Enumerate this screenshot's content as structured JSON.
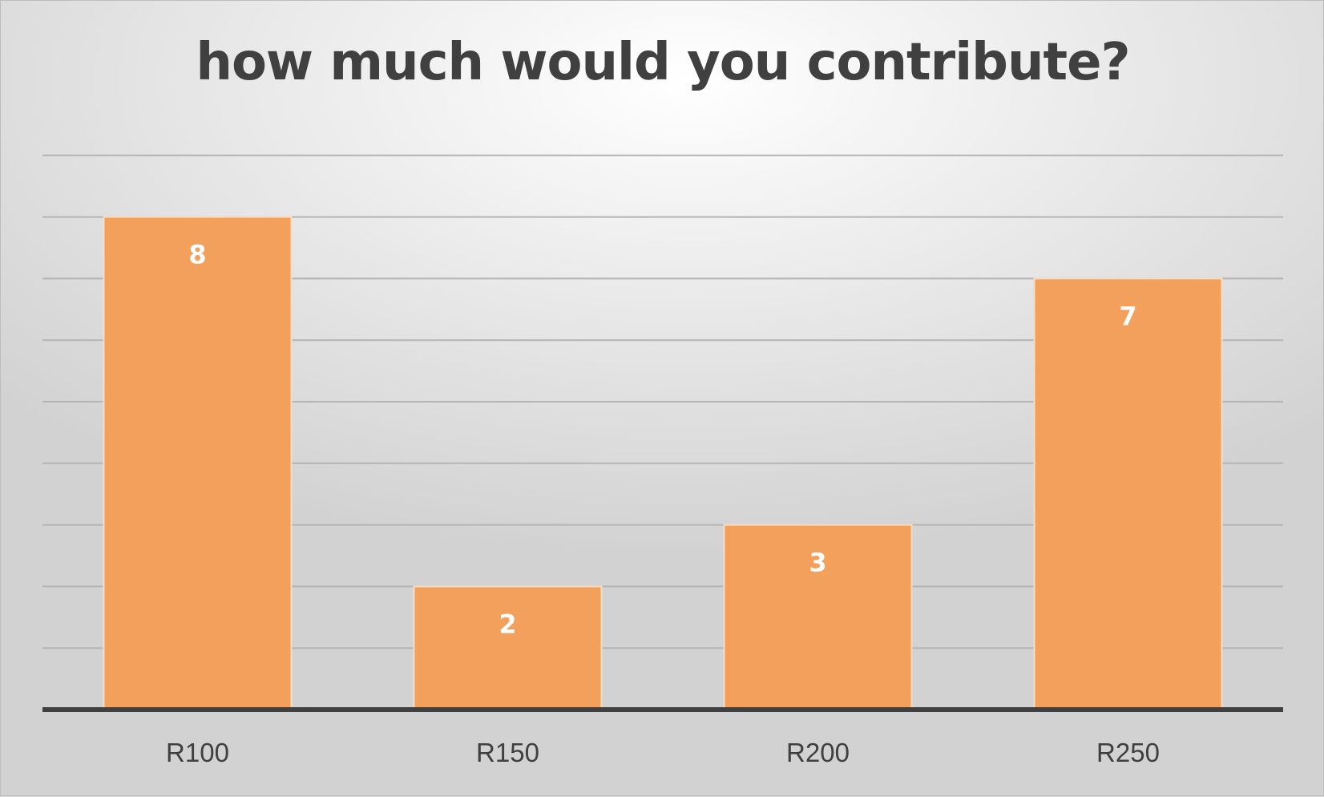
{
  "chart_data": {
    "type": "bar",
    "title": "how much would you contribute?",
    "categories": [
      "R100",
      "R150",
      "R200",
      "R250"
    ],
    "values": [
      8,
      2,
      3,
      7
    ],
    "ylim": [
      0,
      9
    ],
    "grid": true,
    "data_labels": true,
    "legend": "none",
    "colors": {
      "bar": "#f2a05c",
      "bar_border": "#f7dcc4",
      "title": "#404040",
      "gridline": "#b4b4b4",
      "axis": "#404040",
      "data_label": "#ffffff"
    }
  }
}
